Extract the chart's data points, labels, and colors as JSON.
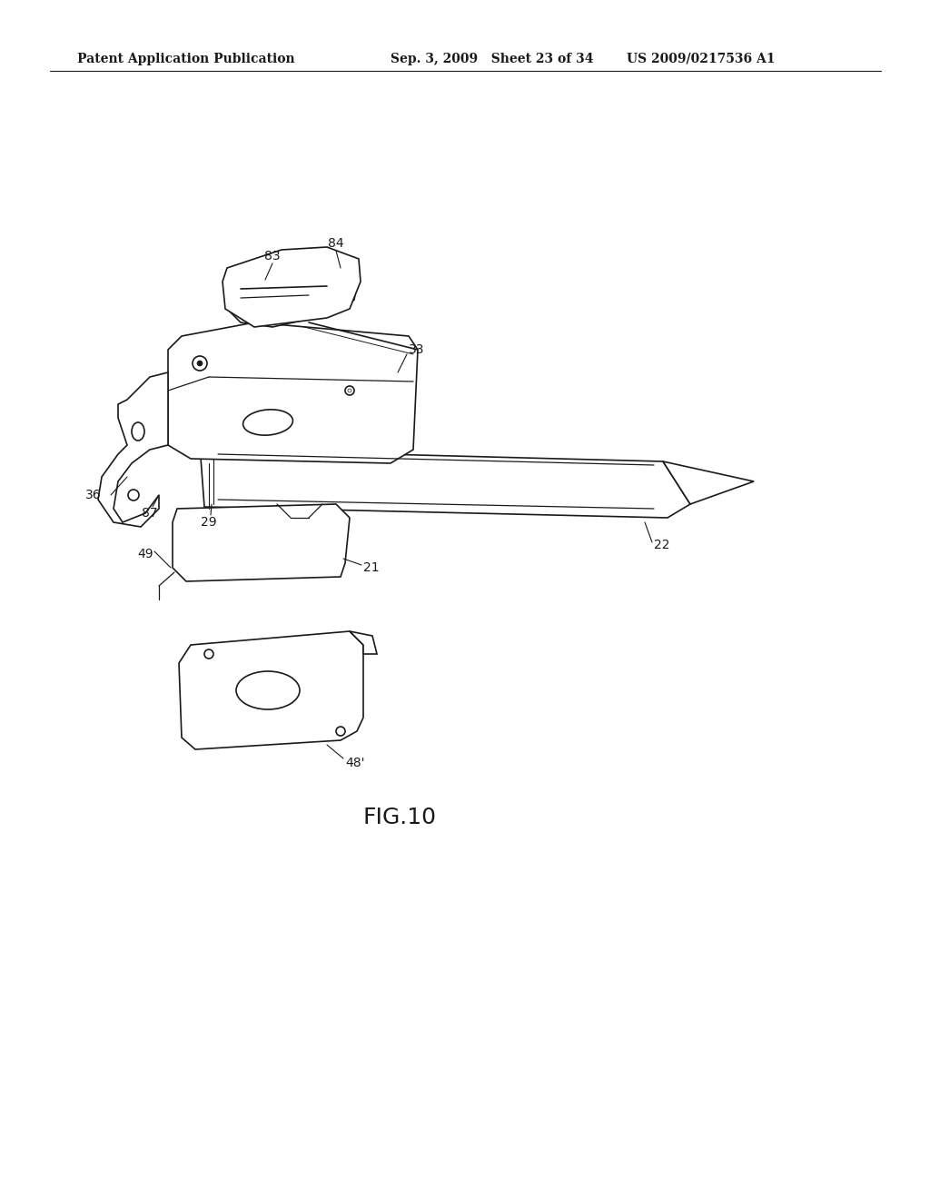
{
  "background_color": "#ffffff",
  "header_left": "Patent Application Publication",
  "header_mid": "Sep. 3, 2009   Sheet 23 of 34",
  "header_right": "US 2009/0217536 A1",
  "figure_label": "FIG.10",
  "header_fontsize": 10,
  "figure_label_fontsize": 18,
  "line_color": "#1a1a1a",
  "line_width": 1.2
}
